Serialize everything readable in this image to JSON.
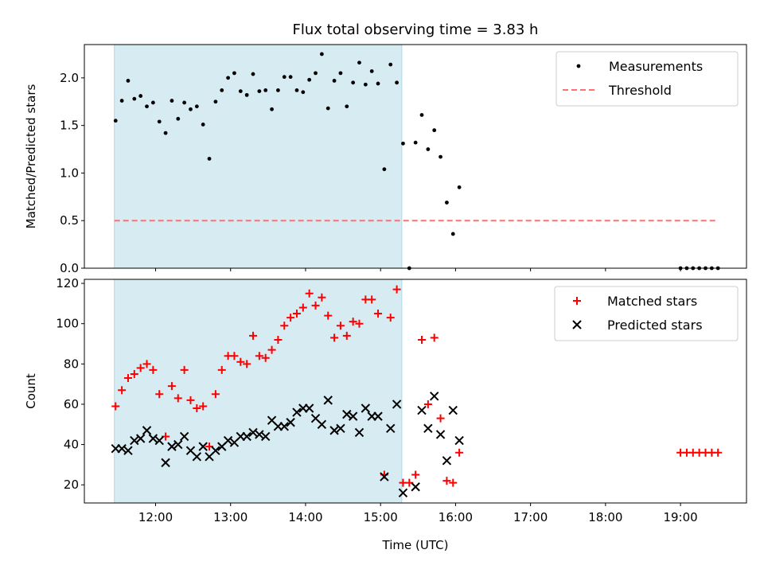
{
  "chart_data": [
    {
      "type": "scatter",
      "title": "Flux total observing time = 3.83 h",
      "xlabel": "",
      "ylabel": "Matched/Predicted stars",
      "ylim": [
        0,
        2.35
      ],
      "yticks": [
        "0.0",
        "0.5",
        "1.0",
        "1.5",
        "2.0"
      ],
      "grid": false,
      "legend_position": "upper-right",
      "shaded_interval": {
        "x": [
          "11:27",
          "15:17"
        ],
        "color": "#add8e6"
      },
      "series": [
        {
          "name": "Measurements",
          "marker": "dot",
          "color": "#000000",
          "points": [
            [
              "11:28",
              1.55
            ],
            [
              "11:33",
              1.76
            ],
            [
              "11:38",
              1.97
            ],
            [
              "11:43",
              1.78
            ],
            [
              "11:48",
              1.81
            ],
            [
              "11:53",
              1.7
            ],
            [
              "11:58",
              1.74
            ],
            [
              "12:03",
              1.54
            ],
            [
              "12:08",
              1.42
            ],
            [
              "12:13",
              1.76
            ],
            [
              "12:18",
              1.57
            ],
            [
              "12:23",
              1.74
            ],
            [
              "12:28",
              1.67
            ],
            [
              "12:33",
              1.7
            ],
            [
              "12:38",
              1.51
            ],
            [
              "12:43",
              1.15
            ],
            [
              "12:48",
              1.75
            ],
            [
              "12:53",
              1.87
            ],
            [
              "12:58",
              2.0
            ],
            [
              "13:03",
              2.05
            ],
            [
              "13:08",
              1.86
            ],
            [
              "13:13",
              1.82
            ],
            [
              "13:18",
              2.04
            ],
            [
              "13:23",
              1.86
            ],
            [
              "13:28",
              1.87
            ],
            [
              "13:33",
              1.67
            ],
            [
              "13:38",
              1.87
            ],
            [
              "13:43",
              2.01
            ],
            [
              "13:48",
              2.01
            ],
            [
              "13:53",
              1.87
            ],
            [
              "13:58",
              1.85
            ],
            [
              "14:03",
              1.98
            ],
            [
              "14:08",
              2.05
            ],
            [
              "14:13",
              2.25
            ],
            [
              "14:18",
              1.68
            ],
            [
              "14:23",
              1.97
            ],
            [
              "14:28",
              2.05
            ],
            [
              "14:33",
              1.7
            ],
            [
              "14:38",
              1.95
            ],
            [
              "14:43",
              2.16
            ],
            [
              "14:48",
              1.93
            ],
            [
              "14:53",
              2.07
            ],
            [
              "14:58",
              1.94
            ],
            [
              "15:03",
              1.04
            ],
            [
              "15:08",
              2.14
            ],
            [
              "15:13",
              1.95
            ],
            [
              "15:18",
              1.31
            ],
            [
              "15:23",
              0.0
            ],
            [
              "15:28",
              1.32
            ],
            [
              "15:33",
              1.61
            ],
            [
              "15:38",
              1.25
            ],
            [
              "15:43",
              1.45
            ],
            [
              "15:48",
              1.17
            ],
            [
              "15:53",
              0.69
            ],
            [
              "15:58",
              0.36
            ],
            [
              "16:03",
              0.85
            ],
            [
              "19:00",
              0.0
            ],
            [
              "19:05",
              0.0
            ],
            [
              "19:10",
              0.0
            ],
            [
              "19:15",
              0.0
            ],
            [
              "19:20",
              0.0
            ],
            [
              "19:25",
              0.0
            ],
            [
              "19:30",
              0.0
            ]
          ]
        },
        {
          "name": "Threshold",
          "marker": "dashed-line",
          "color": "#ff7070",
          "points": [
            [
              "11:27",
              0.5
            ],
            [
              "19:30",
              0.5
            ]
          ]
        }
      ]
    },
    {
      "type": "scatter",
      "title": "",
      "xlabel": "Time (UTC)",
      "ylabel": "Count",
      "ylim": [
        11,
        122
      ],
      "yticks": [
        "20",
        "40",
        "60",
        "80",
        "100",
        "120"
      ],
      "xticks": [
        "12:00",
        "13:00",
        "14:00",
        "15:00",
        "16:00",
        "17:00",
        "18:00",
        "19:00"
      ],
      "grid": false,
      "legend_position": "upper-right",
      "shaded_interval": {
        "x": [
          "11:27",
          "15:17"
        ],
        "color": "#add8e6"
      },
      "series": [
        {
          "name": "Matched stars",
          "marker": "plus",
          "color": "#ff0000",
          "points": [
            [
              "11:28",
              59
            ],
            [
              "11:33",
              67
            ],
            [
              "11:38",
              73
            ],
            [
              "11:43",
              75
            ],
            [
              "11:48",
              78
            ],
            [
              "11:53",
              80
            ],
            [
              "11:58",
              77
            ],
            [
              "12:03",
              65
            ],
            [
              "12:08",
              44
            ],
            [
              "12:13",
              69
            ],
            [
              "12:18",
              63
            ],
            [
              "12:23",
              77
            ],
            [
              "12:28",
              62
            ],
            [
              "12:33",
              58
            ],
            [
              "12:38",
              59
            ],
            [
              "12:43",
              39
            ],
            [
              "12:48",
              65
            ],
            [
              "12:53",
              77
            ],
            [
              "12:58",
              84
            ],
            [
              "13:03",
              84
            ],
            [
              "13:08",
              81
            ],
            [
              "13:13",
              80
            ],
            [
              "13:18",
              94
            ],
            [
              "13:23",
              84
            ],
            [
              "13:28",
              83
            ],
            [
              "13:33",
              87
            ],
            [
              "13:38",
              92
            ],
            [
              "13:43",
              99
            ],
            [
              "13:48",
              103
            ],
            [
              "13:53",
              105
            ],
            [
              "13:58",
              108
            ],
            [
              "14:03",
              115
            ],
            [
              "14:08",
              109
            ],
            [
              "14:13",
              113
            ],
            [
              "14:18",
              104
            ],
            [
              "14:23",
              93
            ],
            [
              "14:28",
              99
            ],
            [
              "14:33",
              94
            ],
            [
              "14:38",
              101
            ],
            [
              "14:43",
              100
            ],
            [
              "14:48",
              112
            ],
            [
              "14:53",
              112
            ],
            [
              "14:58",
              105
            ],
            [
              "15:03",
              25
            ],
            [
              "15:08",
              103
            ],
            [
              "15:13",
              117
            ],
            [
              "15:18",
              21
            ],
            [
              "15:23",
              21
            ],
            [
              "15:28",
              25
            ],
            [
              "15:33",
              92
            ],
            [
              "15:38",
              60
            ],
            [
              "15:43",
              93
            ],
            [
              "15:48",
              53
            ],
            [
              "15:53",
              22
            ],
            [
              "15:58",
              21
            ],
            [
              "16:03",
              36
            ],
            [
              "19:00",
              36
            ],
            [
              "19:05",
              36
            ],
            [
              "19:10",
              36
            ],
            [
              "19:15",
              36
            ],
            [
              "19:20",
              36
            ],
            [
              "19:25",
              36
            ],
            [
              "19:30",
              36
            ]
          ]
        },
        {
          "name": "Predicted stars",
          "marker": "x",
          "color": "#000000",
          "points": [
            [
              "11:28",
              38
            ],
            [
              "11:33",
              38
            ],
            [
              "11:38",
              37
            ],
            [
              "11:43",
              42
            ],
            [
              "11:48",
              43
            ],
            [
              "11:53",
              47
            ],
            [
              "11:58",
              43
            ],
            [
              "12:03",
              42
            ],
            [
              "12:08",
              31
            ],
            [
              "12:13",
              39
            ],
            [
              "12:18",
              40
            ],
            [
              "12:23",
              44
            ],
            [
              "12:28",
              37
            ],
            [
              "12:33",
              34
            ],
            [
              "12:38",
              39
            ],
            [
              "12:43",
              34
            ],
            [
              "12:48",
              37
            ],
            [
              "12:53",
              39
            ],
            [
              "12:58",
              42
            ],
            [
              "13:03",
              41
            ],
            [
              "13:08",
              44
            ],
            [
              "13:13",
              44
            ],
            [
              "13:18",
              46
            ],
            [
              "13:23",
              45
            ],
            [
              "13:28",
              44
            ],
            [
              "13:33",
              52
            ],
            [
              "13:38",
              49
            ],
            [
              "13:43",
              49
            ],
            [
              "13:48",
              51
            ],
            [
              "13:53",
              56
            ],
            [
              "13:58",
              58
            ],
            [
              "14:03",
              58
            ],
            [
              "14:08",
              53
            ],
            [
              "14:13",
              50
            ],
            [
              "14:18",
              62
            ],
            [
              "14:23",
              47
            ],
            [
              "14:28",
              48
            ],
            [
              "14:33",
              55
            ],
            [
              "14:38",
              54
            ],
            [
              "14:43",
              46
            ],
            [
              "14:48",
              58
            ],
            [
              "14:53",
              54
            ],
            [
              "14:58",
              54
            ],
            [
              "15:03",
              24
            ],
            [
              "15:08",
              48
            ],
            [
              "15:13",
              60
            ],
            [
              "15:18",
              16
            ],
            [
              "15:28",
              19
            ],
            [
              "15:33",
              57
            ],
            [
              "15:38",
              48
            ],
            [
              "15:43",
              64
            ],
            [
              "15:48",
              45
            ],
            [
              "15:53",
              32
            ],
            [
              "15:58",
              57
            ],
            [
              "16:03",
              42
            ]
          ]
        }
      ]
    }
  ]
}
